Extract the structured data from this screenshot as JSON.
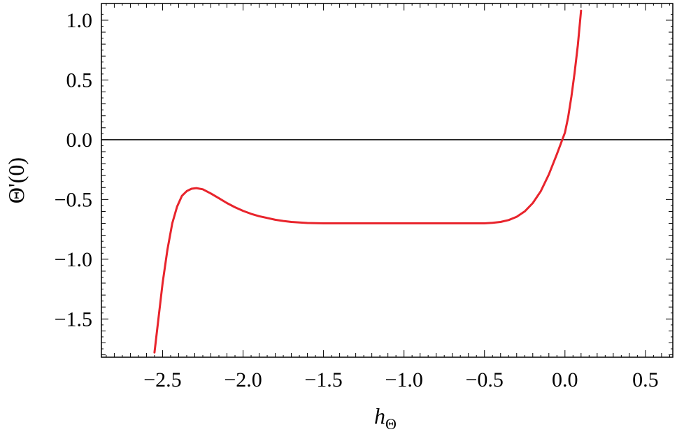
{
  "chart_data": {
    "type": "line",
    "xlabel": "h",
    "xlabel_sub": "Θ",
    "ylabel": "Θ'(0)",
    "xlim": [
      -2.88,
      0.67
    ],
    "ylim": [
      -1.82,
      1.14
    ],
    "xticks": [
      -2.5,
      -2.0,
      -1.5,
      -1.0,
      -0.5,
      0.0,
      0.5
    ],
    "xtick_labels": [
      "−2.5",
      "−2.0",
      "−1.5",
      "−1.0",
      "−0.5",
      "0.0",
      "0.5"
    ],
    "yticks": [
      1.0,
      0.5,
      0.0,
      -0.5,
      -1.0,
      -1.5
    ],
    "ytick_labels": [
      "1.0",
      "0.5",
      "0.0",
      "−0.5",
      "−1.0",
      "−1.5"
    ],
    "grid": false,
    "reference_line_y": 0.0,
    "series": [
      {
        "color": "#e8242c",
        "x": [
          -2.55,
          -2.53,
          -2.5,
          -2.47,
          -2.44,
          -2.41,
          -2.38,
          -2.35,
          -2.32,
          -2.29,
          -2.25,
          -2.2,
          -2.15,
          -2.1,
          -2.05,
          -2.0,
          -1.95,
          -1.9,
          -1.85,
          -1.8,
          -1.75,
          -1.7,
          -1.65,
          -1.6,
          -1.5,
          -1.4,
          -1.3,
          -1.2,
          -1.1,
          -1.0,
          -0.9,
          -0.8,
          -0.7,
          -0.6,
          -0.5,
          -0.45,
          -0.4,
          -0.35,
          -0.3,
          -0.25,
          -0.2,
          -0.15,
          -0.1,
          -0.05,
          0.0,
          0.02,
          0.04,
          0.06,
          0.08,
          0.1
        ],
        "y": [
          -1.78,
          -1.55,
          -1.2,
          -0.92,
          -0.7,
          -0.56,
          -0.47,
          -0.43,
          -0.41,
          -0.405,
          -0.415,
          -0.45,
          -0.49,
          -0.53,
          -0.565,
          -0.595,
          -0.62,
          -0.64,
          -0.655,
          -0.67,
          -0.68,
          -0.688,
          -0.693,
          -0.697,
          -0.7,
          -0.7,
          -0.7,
          -0.7,
          -0.7,
          -0.7,
          -0.7,
          -0.7,
          -0.7,
          -0.7,
          -0.7,
          -0.695,
          -0.688,
          -0.672,
          -0.645,
          -0.6,
          -0.53,
          -0.43,
          -0.29,
          -0.12,
          0.06,
          0.19,
          0.36,
          0.56,
          0.79,
          1.08
        ]
      }
    ]
  }
}
